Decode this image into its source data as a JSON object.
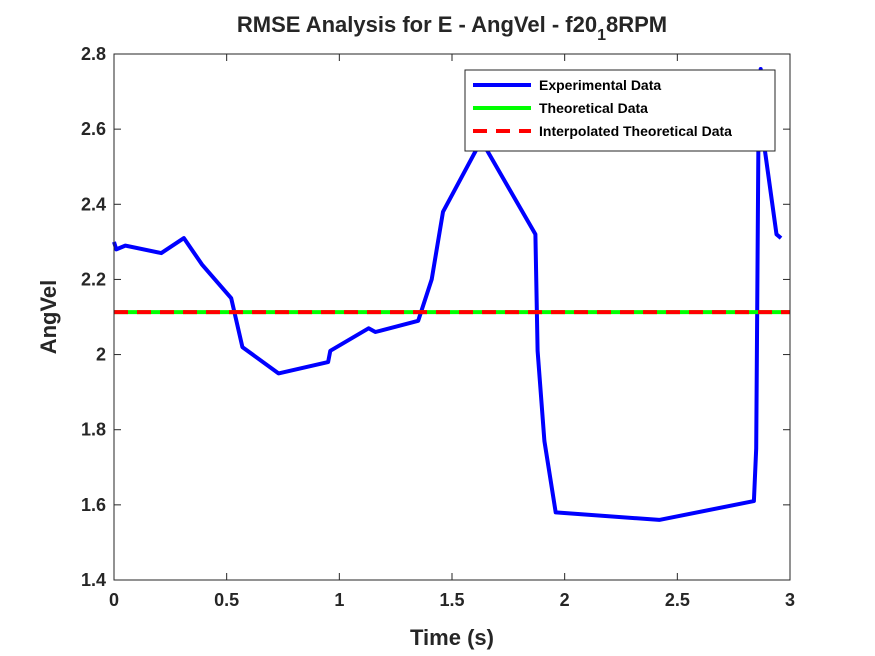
{
  "chart_data": {
    "type": "line",
    "title_main": "RMSE Analysis for E - AngVel - f20",
    "title_sub": "1",
    "title_tail": "8RPM",
    "xlabel": "Time (s)",
    "ylabel": "AngVel",
    "xlim": [
      0,
      3
    ],
    "ylim": [
      1.4,
      2.8
    ],
    "xticks": [
      "0",
      "0.5",
      "1",
      "1.5",
      "2",
      "2.5",
      "3"
    ],
    "yticks": [
      "1.4",
      "1.6",
      "1.8",
      "2",
      "2.2",
      "2.4",
      "2.6",
      "2.8"
    ],
    "legend_position": "top-right",
    "series": [
      {
        "name": "Experimental Data",
        "color": "#0000ff",
        "style": "solid",
        "x": [
          0,
          0.01,
          0.05,
          0.21,
          0.31,
          0.39,
          0.52,
          0.57,
          0.73,
          0.95,
          0.96,
          1.13,
          1.16,
          1.35,
          1.41,
          1.46,
          1.63,
          1.87,
          1.88,
          1.91,
          1.96,
          2.42,
          2.84,
          2.85,
          2.86,
          2.87,
          2.88,
          2.94,
          2.96
        ],
        "y": [
          2.3,
          2.28,
          2.29,
          2.27,
          2.31,
          2.24,
          2.15,
          2.02,
          1.95,
          1.98,
          2.01,
          2.07,
          2.06,
          2.09,
          2.2,
          2.38,
          2.57,
          2.32,
          2.01,
          1.77,
          1.58,
          1.56,
          1.61,
          1.75,
          2.6,
          2.76,
          2.58,
          2.32,
          2.31
        ]
      },
      {
        "name": "Theoretical Data",
        "color": "#00ff00",
        "style": "solid",
        "x": [
          0,
          3
        ],
        "y": [
          2.113,
          2.113
        ]
      },
      {
        "name": "Interpolated Theoretical Data",
        "color": "#ff0000",
        "style": "dashed",
        "x": [
          0,
          3
        ],
        "y": [
          2.113,
          2.113
        ]
      }
    ]
  }
}
